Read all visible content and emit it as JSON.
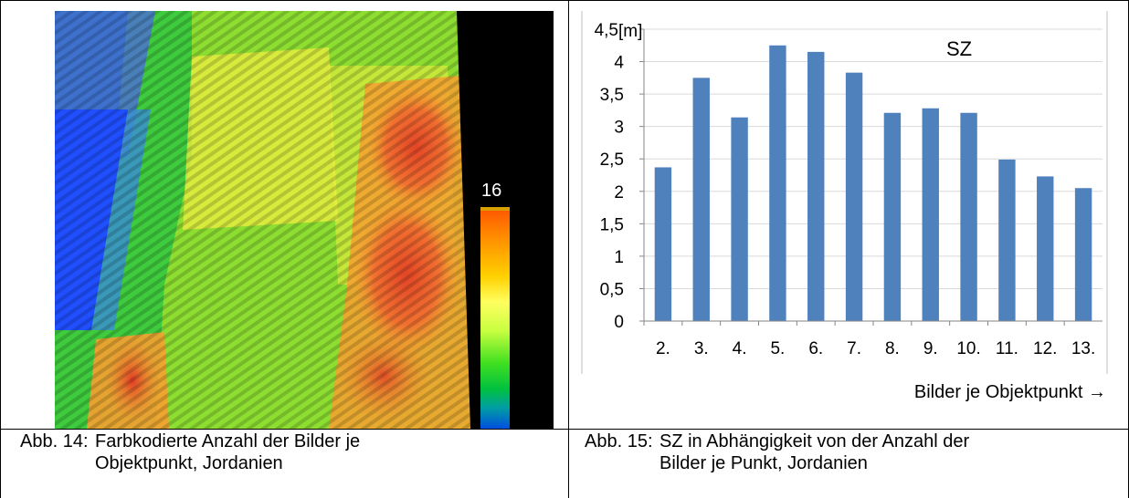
{
  "figure14": {
    "number": "Abb. 14:",
    "caption_line1": "Farbkodierte Anzahl der Bilder je",
    "caption_line2": "Objektpunkt, Jordanien",
    "colorbar_max_label": "16",
    "colorbar_colors": [
      "#ff5a00",
      "#ff8c00",
      "#ffd000",
      "#ffff60",
      "#c8ff40",
      "#40e020",
      "#00c040",
      "#00a0a0",
      "#0050e0"
    ],
    "map_colors": {
      "blue": "#1f4fff",
      "green": "#3ecb3e",
      "lime": "#9be22f",
      "yellow": "#f2ee40",
      "orange": "#f7a030",
      "red": "#e8442a",
      "black": "#000000"
    }
  },
  "figure15": {
    "number": "Abb. 15:",
    "caption_line1": "SZ in Abhängigkeit von der Anzahl der",
    "caption_line2": "Bilder je Punkt, Jordanien"
  },
  "chart_data": {
    "type": "bar",
    "title": "SZ",
    "ylabel": "[m]",
    "xlabel": "Bilder je Objektpunkt →",
    "categories": [
      "2.",
      "3.",
      "4.",
      "5.",
      "6.",
      "7.",
      "8.",
      "9.",
      "10.",
      "11.",
      "12.",
      "13."
    ],
    "values": [
      2.37,
      3.75,
      3.14,
      4.25,
      4.15,
      3.83,
      3.21,
      3.28,
      3.21,
      2.49,
      2.23,
      2.05
    ],
    "ylim": [
      0,
      4.5
    ],
    "yticks": [
      "0",
      "0,5",
      "1",
      "1,5",
      "2",
      "2,5",
      "3",
      "3,5",
      "4",
      "4,5"
    ],
    "grid": true,
    "bar_color": "#4f81bd"
  }
}
